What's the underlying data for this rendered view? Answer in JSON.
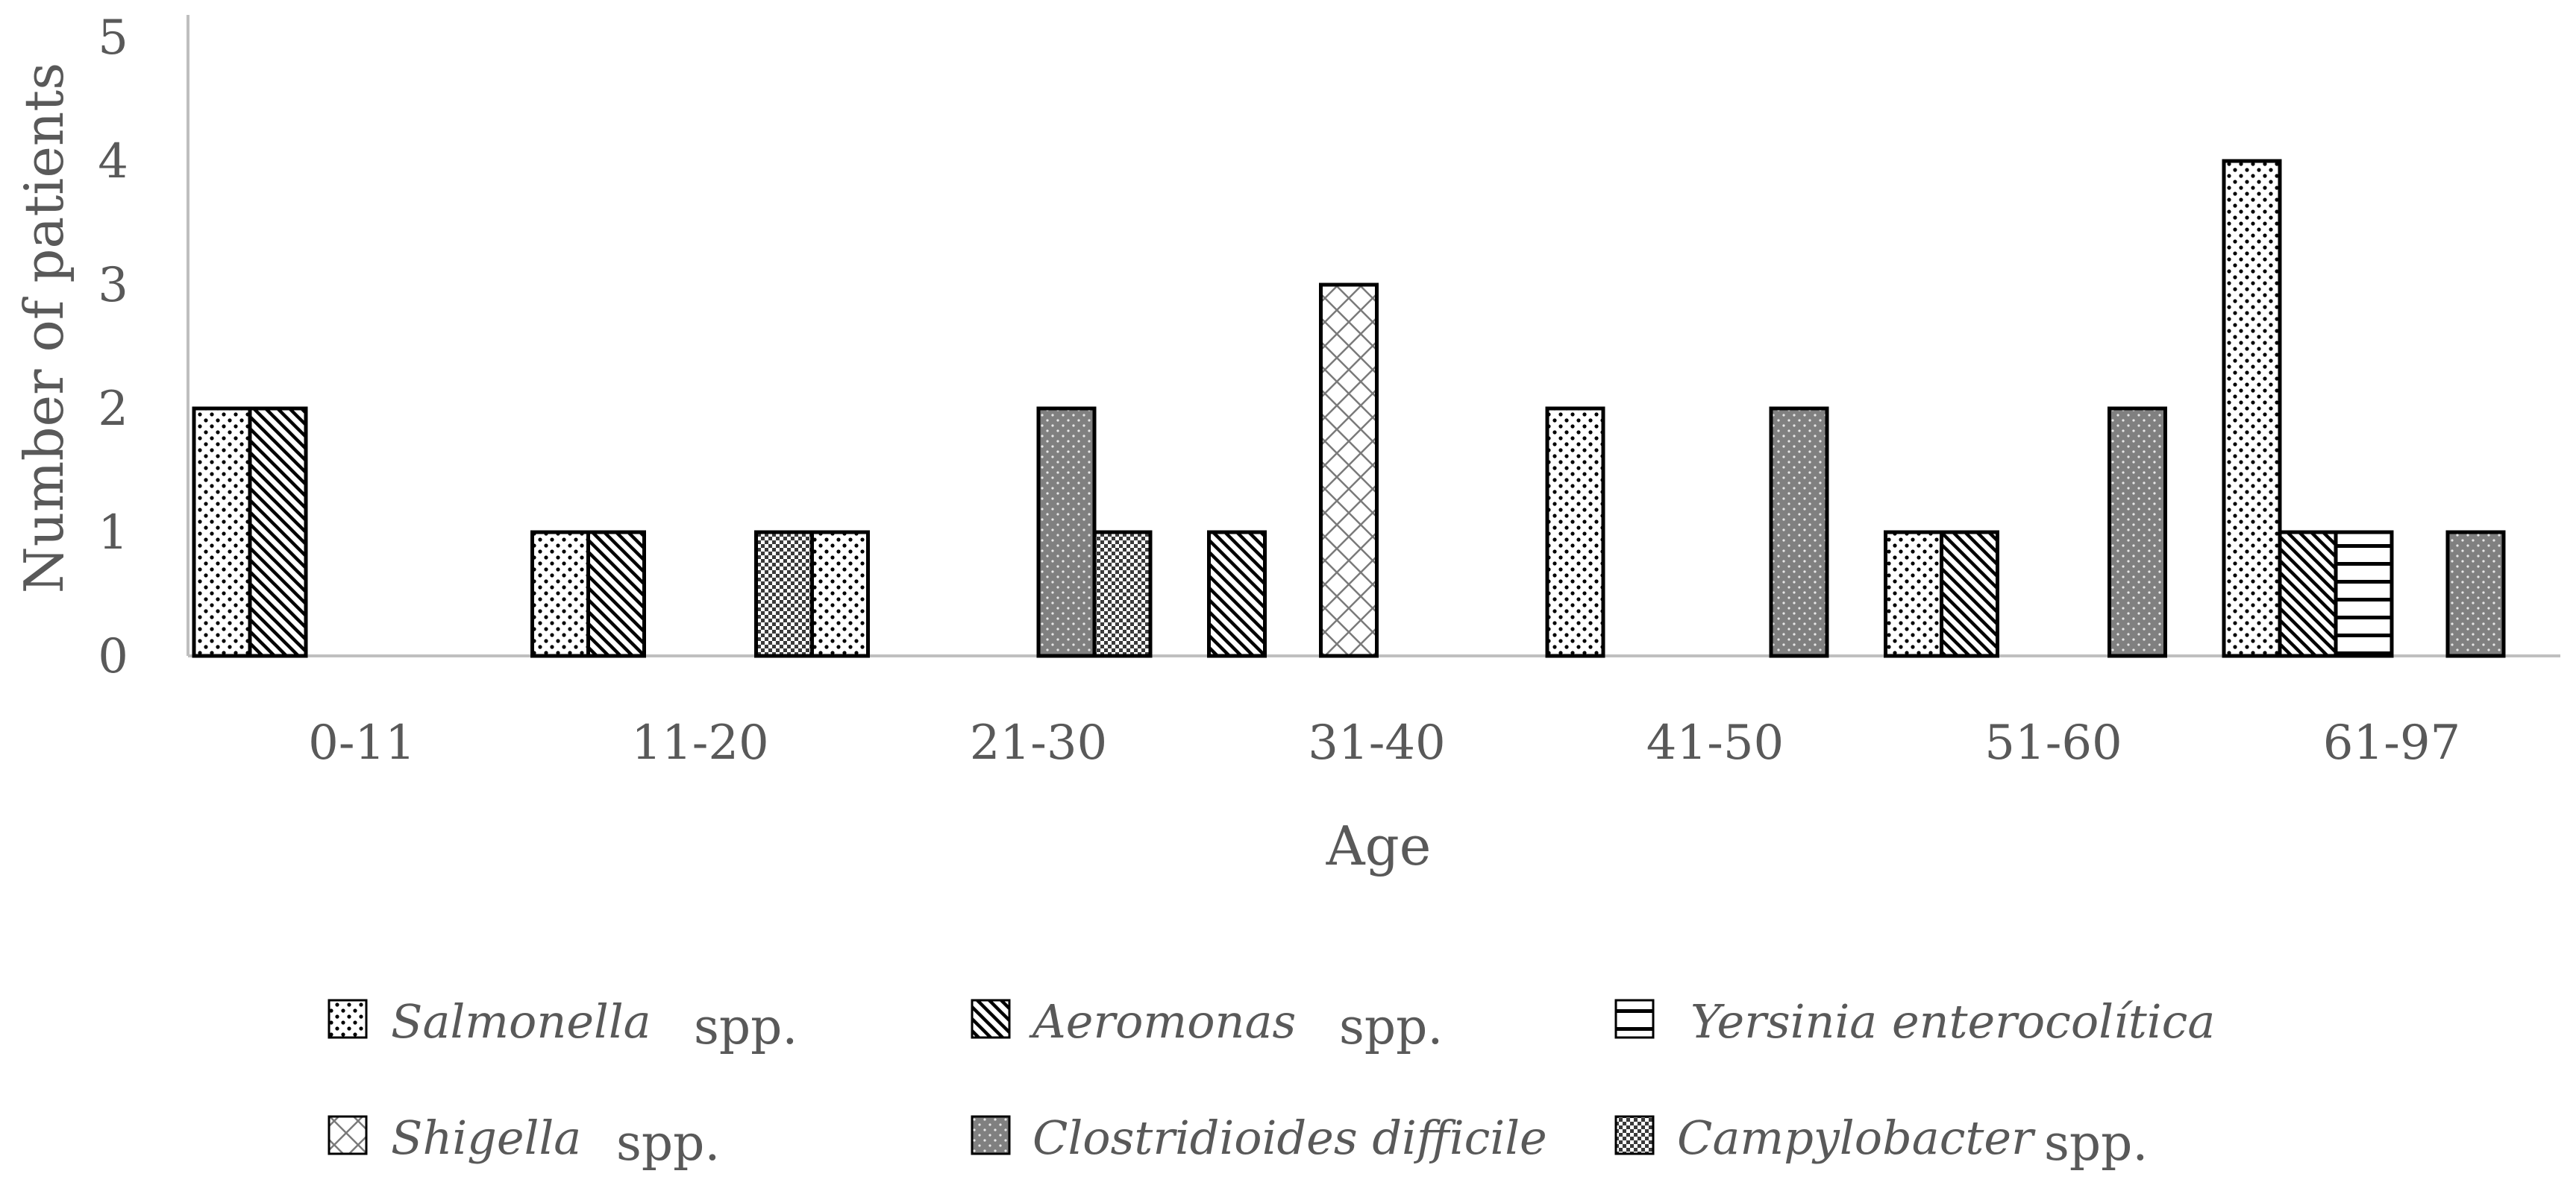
{
  "chart_data": {
    "type": "bar",
    "title": "",
    "xlabel": "Age",
    "ylabel": "Number of patients",
    "ylim": [
      0,
      5
    ],
    "yticks": [
      "0",
      "1",
      "2",
      "3",
      "4",
      "5"
    ],
    "categories": [
      "0-11",
      "11-20",
      "21-30",
      "31-40",
      "41-50",
      "51-60",
      "61-97"
    ],
    "groups": [
      {
        "category": "0-11",
        "bars": [
          {
            "series": "Salmonella",
            "value": 2
          },
          {
            "series": "Aeromonas",
            "value": 2
          },
          {
            "series": null,
            "value": 0
          },
          {
            "series": null,
            "value": 0
          },
          {
            "series": null,
            "value": 0
          },
          {
            "series": null,
            "value": 0
          }
        ]
      },
      {
        "category": "11-20",
        "bars": [
          {
            "series": "Salmonella",
            "value": 1
          },
          {
            "series": "Aeromonas",
            "value": 1
          },
          {
            "series": null,
            "value": 0
          },
          {
            "series": null,
            "value": 0
          },
          {
            "series": "Campylobacter",
            "value": 1
          },
          {
            "series": "Salmonella",
            "value": 1
          }
        ]
      },
      {
        "category": "21-30",
        "bars": [
          {
            "series": null,
            "value": 0
          },
          {
            "series": null,
            "value": 0
          },
          {
            "series": null,
            "value": 0
          },
          {
            "series": "Clostridioides",
            "value": 2
          },
          {
            "series": "Campylobacter",
            "value": 1
          },
          {
            "series": null,
            "value": 0
          }
        ]
      },
      {
        "category": "31-40",
        "bars": [
          {
            "series": "Aeromonas",
            "value": 1
          },
          {
            "series": null,
            "value": 0
          },
          {
            "series": "Shigella",
            "value": 3
          },
          {
            "series": null,
            "value": 0
          },
          {
            "series": null,
            "value": 0
          },
          {
            "series": null,
            "value": 0
          }
        ]
      },
      {
        "category": "41-50",
        "bars": [
          {
            "series": "Salmonella",
            "value": 2
          },
          {
            "series": null,
            "value": 0
          },
          {
            "series": null,
            "value": 0
          },
          {
            "series": null,
            "value": 0
          },
          {
            "series": "Clostridioides",
            "value": 2
          },
          {
            "series": null,
            "value": 0
          }
        ]
      },
      {
        "category": "51-60",
        "bars": [
          {
            "series": "Salmonella",
            "value": 1
          },
          {
            "series": "Aeromonas",
            "value": 1
          },
          {
            "series": null,
            "value": 0
          },
          {
            "series": null,
            "value": 0
          },
          {
            "series": "Clostridioides",
            "value": 2
          },
          {
            "series": null,
            "value": 0
          }
        ]
      },
      {
        "category": "61-97",
        "bars": [
          {
            "series": "Salmonella",
            "value": 4
          },
          {
            "series": "Aeromonas",
            "value": 1
          },
          {
            "series": "Yersinia",
            "value": 1
          },
          {
            "series": null,
            "value": 0
          },
          {
            "series": "Clostridioides",
            "value": 1
          },
          {
            "series": null,
            "value": 0
          }
        ]
      }
    ],
    "series_styles": [
      {
        "key": "Salmonella",
        "pattern": "dots",
        "fill": "#ffffff"
      },
      {
        "key": "Aeromonas",
        "pattern": "diagonal",
        "fill": "#ffffff"
      },
      {
        "key": "Yersinia",
        "pattern": "horizontal",
        "fill": "#ffffff"
      },
      {
        "key": "Shigella",
        "pattern": "crosshatch",
        "fill": "#ffffff"
      },
      {
        "key": "Clostridioides",
        "pattern": "dots-dark",
        "fill": "#808080"
      },
      {
        "key": "Campylobacter",
        "pattern": "checker",
        "fill": "#808080"
      }
    ],
    "legend": [
      {
        "key": "Salmonella",
        "italic": "Salmonella",
        "suffix": "spp."
      },
      {
        "key": "Aeromonas",
        "italic": "Aeromonas",
        "suffix": "spp."
      },
      {
        "key": "Yersinia",
        "italic": "Yersinia enterocolítica",
        "suffix": ""
      },
      {
        "key": "Shigella",
        "italic": "Shigella",
        "suffix": "spp."
      },
      {
        "key": "Clostridioides",
        "italic": "Clostridioides difficile",
        "suffix": ""
      },
      {
        "key": "Campylobacter",
        "italic": "Campylobacter",
        "suffix": "spp."
      }
    ],
    "legend_position": "bottom",
    "colors": {
      "axis": "#bfbfbf",
      "text": "#595959",
      "bar_stroke": "#000000"
    }
  }
}
